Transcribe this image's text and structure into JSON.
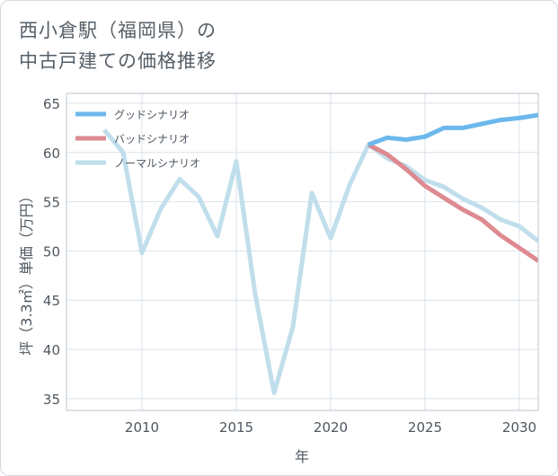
{
  "title_lines": [
    "西小倉駅（福岡県）の",
    "中古戸建ての価格推移"
  ],
  "chart_data": {
    "type": "line",
    "xlabel": "年",
    "ylabel": "坪（3.3㎡）単価（万円）",
    "xlim": [
      2006.0,
      2031.0
    ],
    "ylim": [
      33.8,
      66.0
    ],
    "xticks": [
      2010,
      2015,
      2020,
      2025,
      2030
    ],
    "yticks": [
      35,
      40,
      45,
      50,
      55,
      60,
      65
    ],
    "xtick_labels": [
      "2010",
      "2015",
      "2020",
      "2025",
      "2030"
    ],
    "ytick_labels": [
      "35",
      "40",
      "45",
      "50",
      "55",
      "60",
      "65"
    ],
    "grid": true,
    "legend_position": "top-left",
    "series": [
      {
        "name": "グッドシナリオ",
        "color": "#6cb8ec",
        "x": [
          2022,
          2023,
          2024,
          2025,
          2026,
          2027,
          2028,
          2029,
          2030,
          2031
        ],
        "values": [
          60.8,
          61.5,
          61.3,
          61.6,
          62.5,
          62.5,
          62.9,
          63.3,
          63.5,
          63.8
        ]
      },
      {
        "name": "バッドシナリオ",
        "color": "#dd8a90",
        "x": [
          2022,
          2023,
          2024,
          2025,
          2026,
          2027,
          2028,
          2029,
          2030,
          2031
        ],
        "values": [
          60.8,
          59.8,
          58.3,
          56.6,
          55.4,
          54.2,
          53.2,
          51.6,
          50.3,
          49.0
        ]
      },
      {
        "name": "ノーマルシナリオ",
        "color": "#c0deeb",
        "x": [
          2008,
          2009,
          2010,
          2011,
          2012,
          2013,
          2014,
          2015,
          2016,
          2017,
          2018,
          2019,
          2020,
          2021,
          2022,
          2023,
          2024,
          2025,
          2026,
          2027,
          2028,
          2029,
          2030,
          2031
        ],
        "values": [
          62.3,
          60.0,
          49.8,
          54.3,
          57.3,
          55.5,
          51.5,
          59.1,
          45.6,
          35.6,
          42.3,
          55.9,
          51.3,
          56.7,
          60.8,
          59.4,
          58.6,
          57.2,
          56.5,
          55.3,
          54.4,
          53.2,
          52.5,
          51.0
        ]
      }
    ]
  }
}
